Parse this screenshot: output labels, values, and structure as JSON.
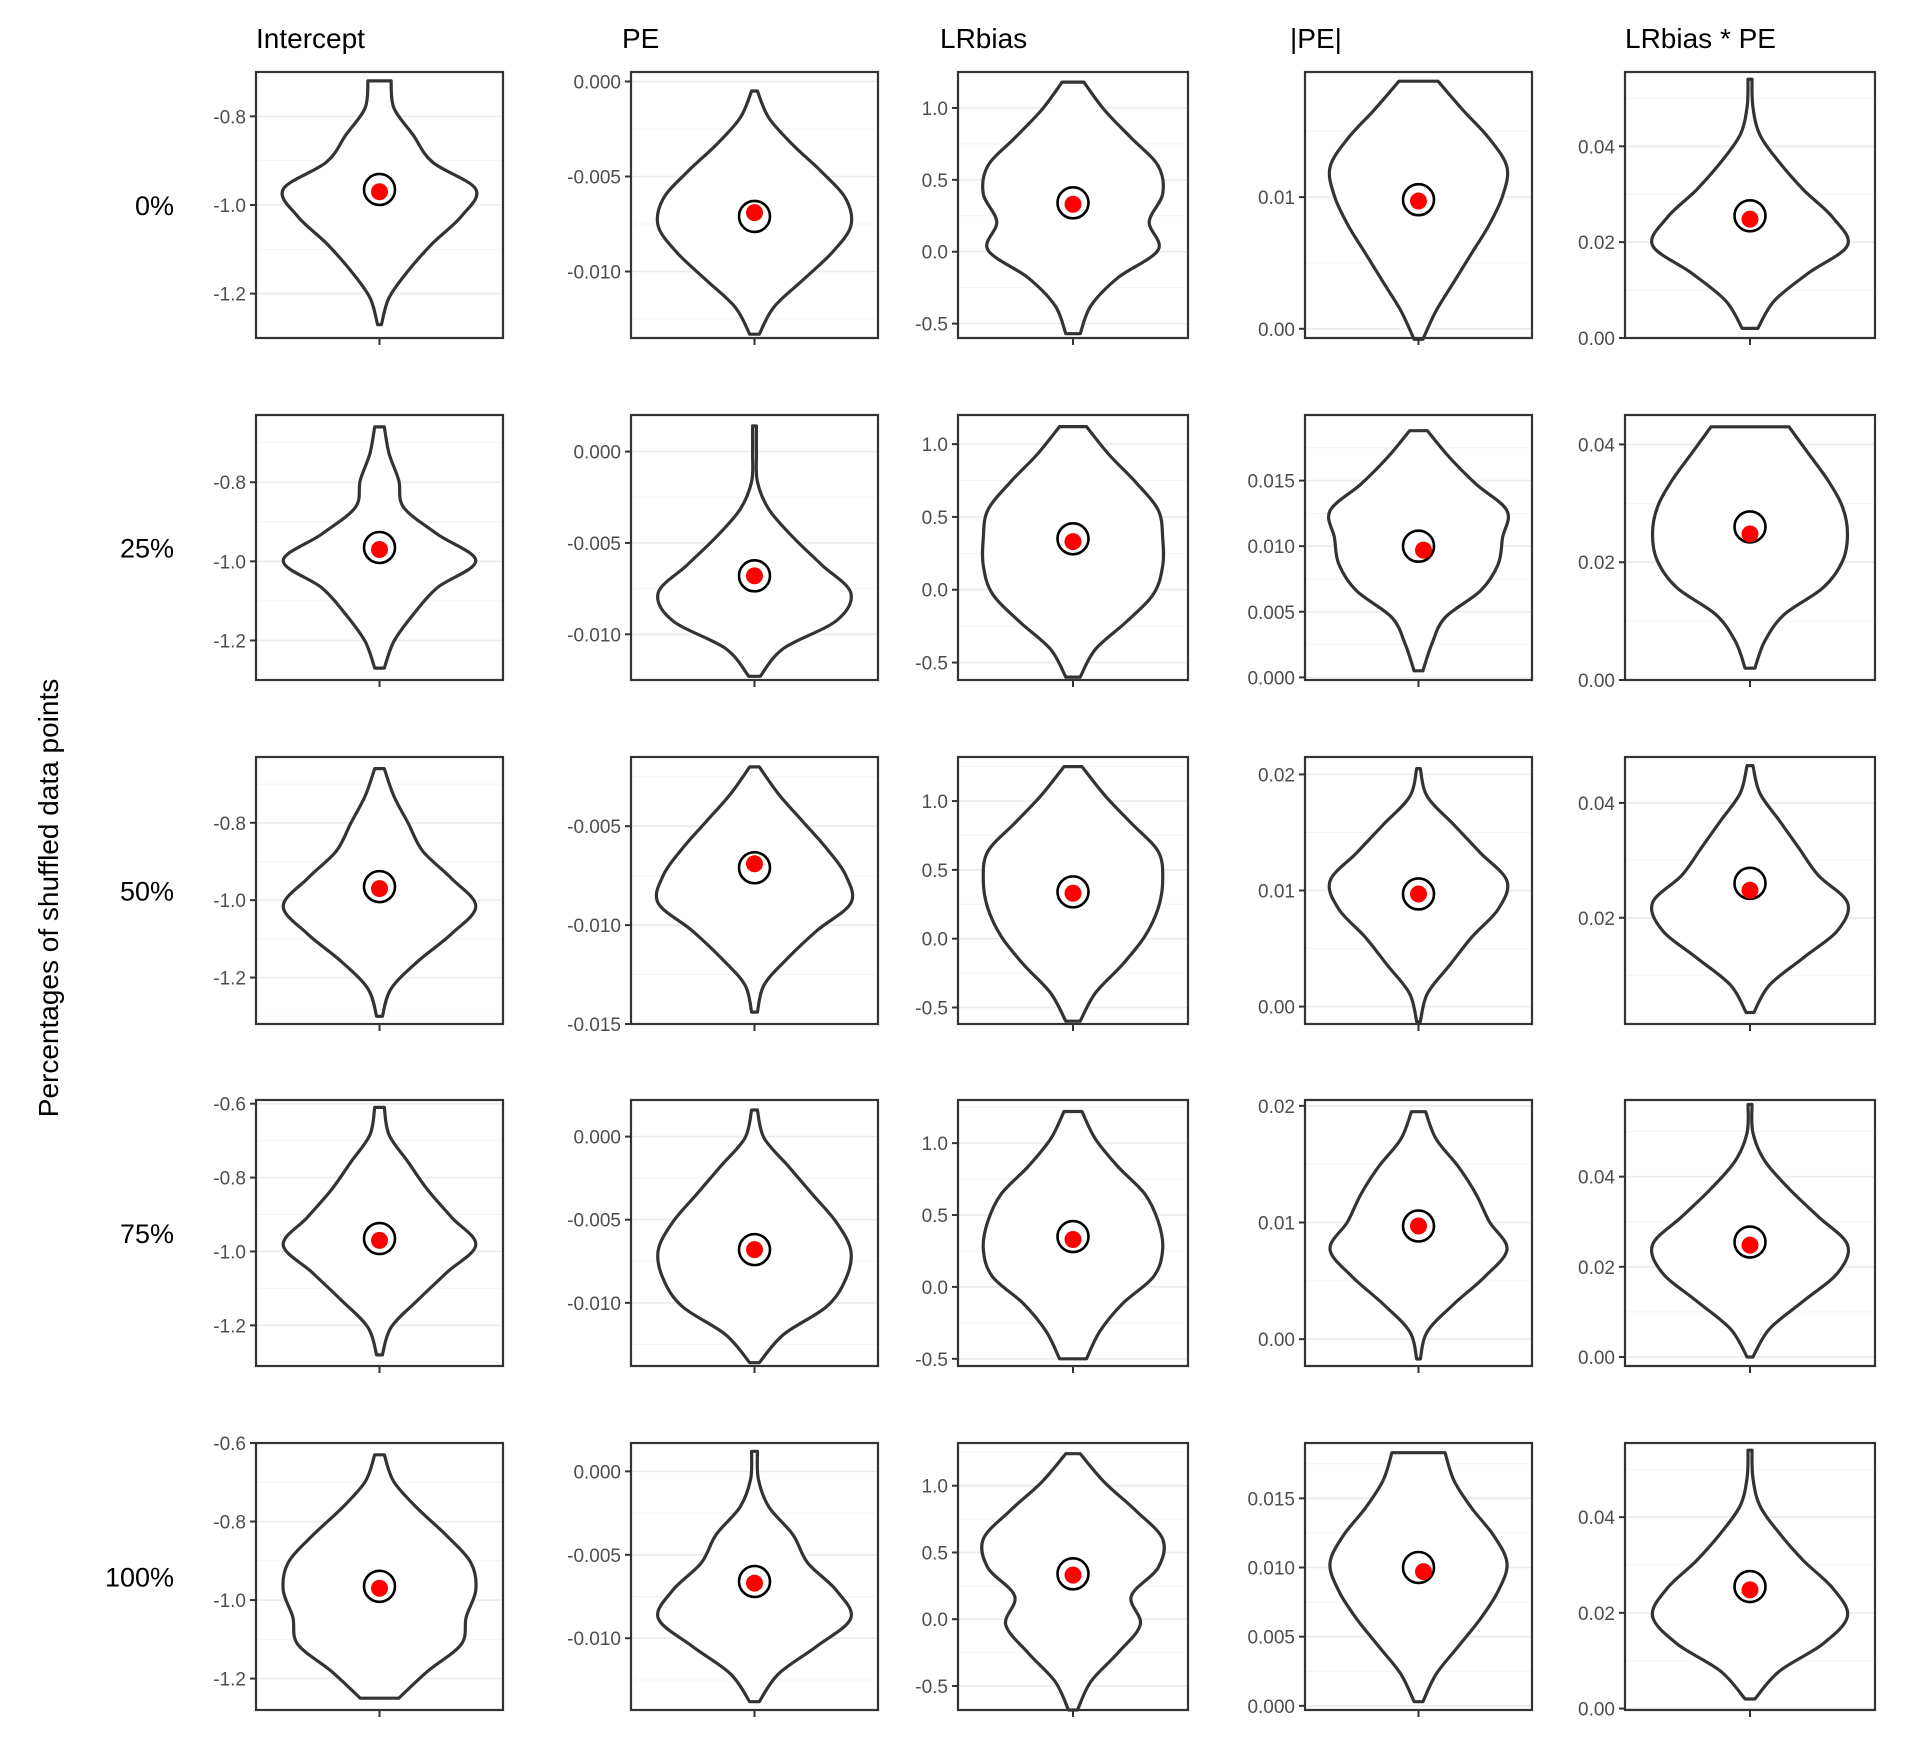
{
  "chart_data": {
    "type": "violin",
    "ylabel": "Percentages of shuffled data points",
    "colors": {
      "point": "#ff0000",
      "ring": "#000000",
      "outline": "#333333"
    },
    "columns": [
      "Intercept",
      "PE",
      "LRbias",
      "|PE|",
      "LRbias * PE"
    ],
    "rows": [
      "0%",
      "25%",
      "50%",
      "75%",
      "100%"
    ],
    "panels": [
      [
        {
          "ylim": [
            -1.3,
            -0.7
          ],
          "ticks": [
            {
              "v": -1.2,
              "label": "-1.2"
            },
            {
              "v": -1.0,
              "label": "-1.0"
            },
            {
              "v": -0.8,
              "label": "-0.8"
            }
          ],
          "range": [
            -1.27,
            -0.72
          ],
          "profile": [
            0.02,
            0.1,
            0.3,
            0.55,
            0.85,
            1.0,
            0.55,
            0.35,
            0.15,
            0.12
          ],
          "ring": -0.965,
          "point": -0.97
        },
        {
          "ylim": [
            -0.0135,
            0.0005
          ],
          "ticks": [
            {
              "v": -0.01,
              "label": "-0.010"
            },
            {
              "v": -0.005,
              "label": "-0.005"
            },
            {
              "v": 0.0,
              "label": "0.000"
            }
          ],
          "range": [
            -0.0133,
            -0.0005
          ],
          "profile": [
            0.05,
            0.2,
            0.5,
            0.8,
            1.0,
            0.95,
            0.7,
            0.4,
            0.15,
            0.03
          ],
          "ring": -0.0071,
          "point": -0.0069
        },
        {
          "ylim": [
            -0.6,
            1.25
          ],
          "ticks": [
            {
              "v": -0.5,
              "label": "-0.5"
            },
            {
              "v": 0.0,
              "label": "0.0"
            },
            {
              "v": 0.5,
              "label": "0.5"
            },
            {
              "v": 1.0,
              "label": "1.0"
            }
          ],
          "range": [
            -0.57,
            1.18
          ],
          "profile": [
            0.08,
            0.2,
            0.5,
            0.95,
            0.85,
            1.0,
            0.95,
            0.65,
            0.35,
            0.12
          ],
          "ring": 0.34,
          "point": 0.33
        },
        {
          "ylim": [
            -0.0007,
            0.0195
          ],
          "ticks": [
            {
              "v": 0.0,
              "label": "0.00"
            },
            {
              "v": 0.01,
              "label": "0.01"
            }
          ],
          "range": [
            -0.0008,
            0.0188
          ],
          "profile": [
            0.05,
            0.2,
            0.4,
            0.6,
            0.8,
            0.95,
            1.0,
            0.8,
            0.5,
            0.22
          ],
          "ring": 0.0098,
          "point": 0.0097
        },
        {
          "ylim": [
            0.0,
            0.0555
          ],
          "ticks": [
            {
              "v": 0.0,
              "label": "0.00"
            },
            {
              "v": 0.02,
              "label": "0.02"
            },
            {
              "v": 0.04,
              "label": "0.04"
            }
          ],
          "range": [
            0.002,
            0.054
          ],
          "profile": [
            0.08,
            0.25,
            0.6,
            1.0,
            0.85,
            0.55,
            0.3,
            0.1,
            0.03,
            0.02
          ],
          "ring": 0.0255,
          "point": 0.0248
        }
      ],
      [
        {
          "ylim": [
            -1.3,
            -0.63
          ],
          "ticks": [
            {
              "v": -1.2,
              "label": "-1.2"
            },
            {
              "v": -1.0,
              "label": "-1.0"
            },
            {
              "v": -0.8,
              "label": "-0.8"
            }
          ],
          "range": [
            -1.27,
            -0.66
          ],
          "profile": [
            0.05,
            0.15,
            0.35,
            0.6,
            1.0,
            0.6,
            0.25,
            0.2,
            0.1,
            0.05
          ],
          "ring": -0.965,
          "point": -0.97
        },
        {
          "ylim": [
            -0.0125,
            0.002
          ],
          "ticks": [
            {
              "v": -0.01,
              "label": "-0.010"
            },
            {
              "v": -0.005,
              "label": "-0.005"
            },
            {
              "v": 0.0,
              "label": "0.000"
            }
          ],
          "range": [
            -0.0123,
            0.0014
          ],
          "profile": [
            0.06,
            0.3,
            0.85,
            1.0,
            0.7,
            0.4,
            0.15,
            0.03,
            0.02,
            0.02
          ],
          "ring": -0.0068,
          "point": -0.0068
        },
        {
          "ylim": [
            -0.62,
            1.2
          ],
          "ticks": [
            {
              "v": -0.5,
              "label": "-0.5"
            },
            {
              "v": 0.0,
              "label": "0.0"
            },
            {
              "v": 0.5,
              "label": "0.5"
            },
            {
              "v": 1.0,
              "label": "1.0"
            }
          ],
          "range": [
            -0.6,
            1.12
          ],
          "profile": [
            0.08,
            0.25,
            0.6,
            0.9,
            1.0,
            1.0,
            0.95,
            0.7,
            0.4,
            0.15
          ],
          "ring": 0.35,
          "point": 0.33
        },
        {
          "ylim": [
            -0.0002,
            0.02
          ],
          "ticks": [
            {
              "v": 0.0,
              "label": "0.000"
            },
            {
              "v": 0.005,
              "label": "0.005"
            },
            {
              "v": 0.01,
              "label": "0.010"
            },
            {
              "v": 0.015,
              "label": "0.015"
            }
          ],
          "range": [
            0.0005,
            0.0188
          ],
          "profile": [
            0.05,
            0.15,
            0.3,
            0.7,
            0.9,
            0.95,
            1.0,
            0.65,
            0.35,
            0.1
          ],
          "ring": 0.01,
          "point": 0.0097
        },
        {
          "ylim": [
            0.0,
            0.045
          ],
          "ticks": [
            {
              "v": 0.0,
              "label": "0.00"
            },
            {
              "v": 0.02,
              "label": "0.02"
            },
            {
              "v": 0.04,
              "label": "0.04"
            }
          ],
          "range": [
            0.002,
            0.043
          ],
          "profile": [
            0.05,
            0.15,
            0.35,
            0.75,
            0.95,
            1.0,
            0.95,
            0.8,
            0.6,
            0.4
          ],
          "ring": 0.026,
          "point": 0.0248
        }
      ],
      [
        {
          "ylim": [
            -1.32,
            -0.63
          ],
          "ticks": [
            {
              "v": -1.2,
              "label": "-1.2"
            },
            {
              "v": -1.0,
              "label": "-1.0"
            },
            {
              "v": -0.8,
              "label": "-0.8"
            }
          ],
          "range": [
            -1.3,
            -0.66
          ],
          "profile": [
            0.03,
            0.12,
            0.4,
            0.75,
            1.0,
            0.75,
            0.45,
            0.3,
            0.15,
            0.05
          ],
          "ring": -0.965,
          "point": -0.97
        },
        {
          "ylim": [
            -0.015,
            -0.0015
          ],
          "ticks": [
            {
              "v": -0.015,
              "label": "-0.015"
            },
            {
              "v": -0.01,
              "label": "-0.010"
            },
            {
              "v": -0.005,
              "label": "-0.005"
            }
          ],
          "range": [
            -0.0144,
            -0.002
          ],
          "profile": [
            0.03,
            0.1,
            0.35,
            0.65,
            1.0,
            0.95,
            0.75,
            0.5,
            0.25,
            0.05
          ],
          "ring": -0.0071,
          "point": -0.0069
        },
        {
          "ylim": [
            -0.62,
            1.32
          ],
          "ticks": [
            {
              "v": -0.5,
              "label": "-0.5"
            },
            {
              "v": 0.0,
              "label": "0.0"
            },
            {
              "v": 0.5,
              "label": "0.5"
            },
            {
              "v": 1.0,
              "label": "1.0"
            }
          ],
          "range": [
            -0.6,
            1.25
          ],
          "profile": [
            0.08,
            0.25,
            0.55,
            0.8,
            0.95,
            1.0,
            0.95,
            0.65,
            0.35,
            0.1
          ],
          "ring": 0.34,
          "point": 0.33
        },
        {
          "ylim": [
            -0.0015,
            0.0215
          ],
          "ticks": [
            {
              "v": 0.0,
              "label": "0.00"
            },
            {
              "v": 0.01,
              "label": "0.01"
            },
            {
              "v": 0.02,
              "label": "0.02"
            }
          ],
          "range": [
            -0.0013,
            0.0205
          ],
          "profile": [
            0.02,
            0.1,
            0.35,
            0.6,
            0.9,
            1.0,
            0.7,
            0.4,
            0.1,
            0.02
          ],
          "ring": 0.0097,
          "point": 0.0097
        },
        {
          "ylim": [
            0.0015,
            0.048
          ],
          "ticks": [
            {
              "v": 0.02,
              "label": "0.02"
            },
            {
              "v": 0.04,
              "label": "0.04"
            }
          ],
          "range": [
            0.0035,
            0.0465
          ],
          "profile": [
            0.04,
            0.2,
            0.55,
            0.9,
            1.0,
            0.7,
            0.5,
            0.3,
            0.1,
            0.03
          ],
          "ring": 0.026,
          "point": 0.0248
        }
      ],
      [
        {
          "ylim": [
            -1.31,
            -0.59
          ],
          "ticks": [
            {
              "v": -1.2,
              "label": "-1.2"
            },
            {
              "v": -1.0,
              "label": "-1.0"
            },
            {
              "v": -0.8,
              "label": "-0.8"
            },
            {
              "v": -0.6,
              "label": "-0.6"
            }
          ],
          "range": [
            -1.28,
            -0.61
          ],
          "profile": [
            0.03,
            0.12,
            0.4,
            0.7,
            1.0,
            0.75,
            0.5,
            0.3,
            0.1,
            0.05
          ],
          "ring": -0.965,
          "point": -0.97
        },
        {
          "ylim": [
            -0.0138,
            0.0022
          ],
          "ticks": [
            {
              "v": -0.01,
              "label": "-0.010"
            },
            {
              "v": -0.005,
              "label": "-0.005"
            },
            {
              "v": 0.0,
              "label": "0.000"
            }
          ],
          "range": [
            -0.0136,
            0.0016
          ],
          "profile": [
            0.05,
            0.3,
            0.75,
            0.95,
            1.0,
            0.85,
            0.6,
            0.35,
            0.1,
            0.03
          ],
          "ring": -0.0068,
          "point": -0.0068
        },
        {
          "ylim": [
            -0.55,
            1.3
          ],
          "ticks": [
            {
              "v": -0.5,
              "label": "-0.5"
            },
            {
              "v": 0.0,
              "label": "0.0"
            },
            {
              "v": 0.5,
              "label": "0.5"
            },
            {
              "v": 1.0,
              "label": "1.0"
            }
          ],
          "range": [
            -0.5,
            1.22
          ],
          "profile": [
            0.15,
            0.3,
            0.55,
            0.9,
            1.0,
            0.95,
            0.8,
            0.5,
            0.25,
            0.1
          ],
          "ring": 0.35,
          "point": 0.33
        },
        {
          "ylim": [
            -0.0023,
            0.0205
          ],
          "ticks": [
            {
              "v": 0.0,
              "label": "0.00"
            },
            {
              "v": 0.01,
              "label": "0.01"
            },
            {
              "v": 0.02,
              "label": "0.02"
            }
          ],
          "range": [
            -0.0017,
            0.0195
          ],
          "profile": [
            0.02,
            0.1,
            0.4,
            0.75,
            1.0,
            0.8,
            0.65,
            0.45,
            0.2,
            0.08
          ],
          "ring": 0.0097,
          "point": 0.0097
        },
        {
          "ylim": [
            -0.002,
            0.057
          ],
          "ticks": [
            {
              "v": 0.0,
              "label": "0.00"
            },
            {
              "v": 0.02,
              "label": "0.02"
            },
            {
              "v": 0.04,
              "label": "0.04"
            }
          ],
          "range": [
            0.0,
            0.056
          ],
          "profile": [
            0.03,
            0.2,
            0.55,
            0.9,
            1.0,
            0.7,
            0.4,
            0.15,
            0.03,
            0.02
          ],
          "ring": 0.0255,
          "point": 0.0248
        }
      ],
      [
        {
          "ylim": [
            -1.28,
            -0.6
          ],
          "ticks": [
            {
              "v": -1.2,
              "label": "-1.2"
            },
            {
              "v": -1.0,
              "label": "-1.0"
            },
            {
              "v": -0.8,
              "label": "-0.8"
            },
            {
              "v": -0.6,
              "label": "-0.6"
            }
          ],
          "range": [
            -1.25,
            -0.63
          ],
          "profile": [
            0.2,
            0.5,
            0.85,
            0.9,
            1.0,
            0.95,
            0.7,
            0.4,
            0.15,
            0.05
          ],
          "ring": -0.965,
          "point": -0.97
        },
        {
          "ylim": [
            -0.0143,
            0.0017
          ],
          "ticks": [
            {
              "v": -0.01,
              "label": "-0.010"
            },
            {
              "v": -0.005,
              "label": "-0.005"
            },
            {
              "v": 0.0,
              "label": "0.000"
            }
          ],
          "range": [
            -0.0138,
            0.0012
          ],
          "profile": [
            0.05,
            0.25,
            0.65,
            1.0,
            0.85,
            0.55,
            0.4,
            0.15,
            0.04,
            0.03
          ],
          "ring": -0.0066,
          "point": -0.0067
        },
        {
          "ylim": [
            -0.68,
            1.32
          ],
          "ticks": [
            {
              "v": -0.5,
              "label": "-0.5"
            },
            {
              "v": 0.0,
              "label": "0.0"
            },
            {
              "v": 0.5,
              "label": "0.5"
            },
            {
              "v": 1.0,
              "label": "1.0"
            }
          ],
          "range": [
            -0.68,
            1.24
          ],
          "profile": [
            0.05,
            0.2,
            0.5,
            0.75,
            0.65,
            0.95,
            1.0,
            0.7,
            0.35,
            0.08
          ],
          "ring": 0.34,
          "point": 0.33
        },
        {
          "ylim": [
            -0.0003,
            0.019
          ],
          "ticks": [
            {
              "v": 0.0,
              "label": "0.000"
            },
            {
              "v": 0.005,
              "label": "0.005"
            },
            {
              "v": 0.01,
              "label": "0.010"
            },
            {
              "v": 0.015,
              "label": "0.015"
            }
          ],
          "range": [
            0.0003,
            0.0183
          ],
          "profile": [
            0.05,
            0.2,
            0.45,
            0.7,
            0.9,
            1.0,
            0.85,
            0.6,
            0.4,
            0.3
          ],
          "ring": 0.01,
          "point": 0.0097
        },
        {
          "ylim": [
            -0.0003,
            0.0555
          ],
          "ticks": [
            {
              "v": 0.0,
              "label": "0.00"
            },
            {
              "v": 0.02,
              "label": "0.02"
            },
            {
              "v": 0.04,
              "label": "0.04"
            }
          ],
          "range": [
            0.002,
            0.054
          ],
          "profile": [
            0.05,
            0.3,
            0.75,
            1.0,
            0.85,
            0.55,
            0.3,
            0.1,
            0.03,
            0.02
          ],
          "ring": 0.0255,
          "point": 0.0248
        }
      ]
    ]
  }
}
